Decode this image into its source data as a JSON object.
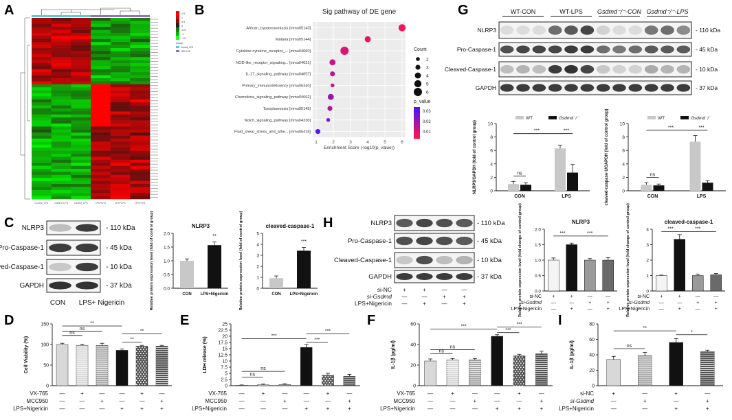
{
  "panel_letters": {
    "A": "A",
    "B": "B",
    "C": "C",
    "D": "D",
    "E": "E",
    "F": "F",
    "G": "G",
    "H": "H",
    "I": "I"
  },
  "panelB": {
    "title": "Sig pathway of DE gene",
    "xlabel": "Enrichment Score (-log10(p_value))",
    "legend_count_title": "Count",
    "legend_p_title": "p_value"
  },
  "panelG": {
    "groups": [
      "WT-CON",
      "WT-LPS",
      "Gsdmd⁻/⁻-CON",
      "Gsdmd⁻/⁻-LPS"
    ],
    "rows": [
      "NLRP3",
      "Pro-Caspase-1",
      "Cleaved-Caspase-1",
      "GAPDH"
    ],
    "sizes": [
      "110 kDa",
      "45 kDa",
      "10 kDa",
      "37 kDa"
    ]
  },
  "panelC": {
    "rows": [
      "NLRP3",
      "Pro-Caspase-1",
      "Cleaved-Caspase-1",
      "GAPDH"
    ],
    "sizes": [
      "110 kDa",
      "45 kDa",
      "10 kDa",
      "37 kDa"
    ],
    "lanes": [
      "CON",
      "LPS+ Nigericin"
    ]
  },
  "panelH": {
    "rows": [
      "NLRP3",
      "Pro-Caspase-1",
      "Cleaved-Caspase-1",
      "GAPDH"
    ],
    "sizes": [
      "110 kDa",
      "45 kDa",
      "10 kDa",
      "37 kDa"
    ],
    "cond_labels": [
      "si-NC",
      "si-Gsdmd",
      "LPS+Nigericin"
    ]
  },
  "chart_data": [
    {
      "id": "A",
      "type": "heatmap",
      "columns": 6,
      "legend_values": [
        "1.5",
        "1",
        "0.5",
        "0",
        "-0.5",
        "-1",
        "-1.5"
      ],
      "group_legend_title": "Group",
      "group_legend": [
        "Control_LPS",
        "LPS+LPS"
      ]
    },
    {
      "id": "B",
      "type": "scatter",
      "title": "Sig pathway of DE gene",
      "xlabel": "Enrichment Score (-log10(p_value))",
      "xlim": [
        0.8,
        6.2
      ],
      "xticks": [
        "1",
        "2",
        "3",
        "4",
        "5",
        "6"
      ],
      "pathways": [
        "African_trypanosomiasis [mmu05143]",
        "Malaria [mmu05144]",
        "Cytokine-cytokine_receptor_... [mmu04060]",
        "NOD-like_receptor_signaling... [mmu04621]",
        "IL-17_signaling_pathway [mmu04657]",
        "Primary_immunodeficiency [mmu05340]",
        "Chemokine_signaling_pathway [mmu04062]",
        "Toxoplasmosis [mmu05145]",
        "Notch_signaling_pathway [mmu04330]",
        "Fluid_shear_stress_and_athe... [mmu05418]"
      ],
      "x": [
        6.0,
        4.0,
        2.65,
        1.95,
        1.95,
        1.95,
        1.85,
        1.8,
        1.7,
        1.1
      ],
      "count": [
        5,
        4,
        6,
        4,
        3,
        2,
        4,
        3,
        2,
        3
      ],
      "p_value": [
        0.003,
        0.005,
        0.008,
        0.012,
        0.014,
        0.012,
        0.022,
        0.018,
        0.028,
        0.038
      ],
      "count_legend": [
        "2",
        "3",
        "4",
        "5",
        "6"
      ],
      "p_legend": [
        "0.03",
        "0.02",
        "0.01"
      ]
    },
    {
      "id": "C_NLRP3",
      "type": "bar",
      "title": "NLRP3",
      "ylabel": "Relative protein expression level (fold of control group)",
      "categories": [
        "CON",
        "LPS+Nigericin"
      ],
      "values": [
        1.0,
        1.57
      ],
      "errors": [
        0.07,
        0.12
      ],
      "ylim": [
        0,
        2.0
      ],
      "yticks": [
        "0.0",
        "0.5",
        "1.0",
        "1.5",
        "2.0"
      ],
      "significance": [
        "**"
      ]
    },
    {
      "id": "C_cc1",
      "type": "bar",
      "title": "cleaved-caspase-1",
      "ylabel": "Relative protein expression level (fold of control group)",
      "categories": [
        "CON",
        "LPS+Nigericin"
      ],
      "values": [
        0.92,
        3.42
      ],
      "errors": [
        0.2,
        0.3
      ],
      "ylim": [
        0,
        5
      ],
      "yticks": [
        "0",
        "1",
        "2",
        "3",
        "4",
        "5"
      ],
      "significance": [
        "***"
      ]
    },
    {
      "id": "G_NLRP3",
      "type": "bar",
      "ylabel": "NLRP3/GAPDH (fold of control group)",
      "categories": [
        "CON",
        "LPS"
      ],
      "series": [
        {
          "name": "WT",
          "values": [
            1.0,
            6.3
          ],
          "errors": [
            0.4,
            0.5
          ]
        },
        {
          "name": "Gsdmd⁻/⁻",
          "values": [
            0.9,
            2.7
          ],
          "errors": [
            0.3,
            1.2
          ]
        }
      ],
      "ylim": [
        0,
        10
      ],
      "yticks": [
        "0",
        "2",
        "4",
        "6",
        "8",
        "10"
      ],
      "significance": [
        "ns",
        "***",
        "***"
      ]
    },
    {
      "id": "G_cc1",
      "type": "bar",
      "ylabel": "cleaved-caspase-1/GAPDH (fold of control group)",
      "categories": [
        "CON",
        "LPS"
      ],
      "series": [
        {
          "name": "WT",
          "values": [
            0.9,
            7.3
          ],
          "errors": [
            0.3,
            0.9
          ]
        },
        {
          "name": "Gsdmd⁻/⁻",
          "values": [
            0.8,
            1.2
          ],
          "errors": [
            0.2,
            0.3
          ]
        }
      ],
      "ylim": [
        0,
        10
      ],
      "yticks": [
        "0",
        "2",
        "4",
        "6",
        "8",
        "10"
      ],
      "significance": [
        "ns",
        "***",
        "***"
      ]
    },
    {
      "id": "H_NLRP3",
      "type": "bar",
      "title": "NLRP3",
      "ylabel": "Relative protein expression level (fold change of control group)",
      "values": [
        1.0,
        1.5,
        1.0,
        1.0
      ],
      "errors": [
        0.07,
        0.05,
        0.05,
        0.08
      ],
      "ylim": [
        0,
        2.0
      ],
      "yticks": [
        "0.0",
        "0.5",
        "1.0",
        "1.5",
        "2.0"
      ],
      "conditions": {
        "si-NC": [
          "+",
          "+",
          "—",
          "—"
        ],
        "si-Gsdmd": [
          "—",
          "—",
          "+",
          "+"
        ],
        "LPS+Nigericin": [
          "—",
          "+",
          "—",
          "+"
        ]
      },
      "significance": [
        "***",
        "***"
      ]
    },
    {
      "id": "H_cc1",
      "type": "bar",
      "title": "cleaved-caspase-1",
      "ylabel": "Relative protein expression level (fold change of control group)",
      "values": [
        1.0,
        3.35,
        1.0,
        1.05
      ],
      "errors": [
        0.03,
        0.3,
        0.1,
        0.08
      ],
      "ylim": [
        0,
        4
      ],
      "yticks": [
        "0",
        "1",
        "2",
        "3",
        "4"
      ],
      "conditions": {
        "si-NC": [
          "+",
          "+",
          "—",
          "—"
        ],
        "si-Gsdmd": [
          "—",
          "—",
          "+",
          "+"
        ],
        "LPS+Nigericin": [
          "—",
          "+",
          "—",
          "+"
        ]
      },
      "significance": [
        "***",
        "***"
      ]
    },
    {
      "id": "D",
      "type": "bar",
      "ylabel": "Cell Viability (%)",
      "values": [
        100,
        98,
        98,
        86,
        96,
        96
      ],
      "errors": [
        3,
        3,
        5,
        3,
        2,
        2
      ],
      "ylim": [
        0,
        150
      ],
      "yticks": [
        "0",
        "50",
        "100",
        "150"
      ],
      "condition_labels": [
        "VX-765",
        "MCC950",
        "LPS+Nigericin"
      ],
      "conditions": {
        "VX-765": [
          "—",
          "+",
          "—",
          "—",
          "+",
          "—"
        ],
        "MCC950": [
          "—",
          "—",
          "+",
          "—",
          "—",
          "+"
        ],
        "LPS+Nigericin": [
          "—",
          "—",
          "—",
          "+",
          "+",
          "+"
        ]
      },
      "significance": [
        "ns",
        "ns",
        "**",
        "**",
        "**"
      ]
    },
    {
      "id": "E",
      "type": "bar",
      "ylabel": "LDH release (%)",
      "values": [
        0.2,
        0.4,
        0.5,
        15.5,
        4.2,
        3.8
      ],
      "errors": [
        0.1,
        0.3,
        0.3,
        1.2,
        0.8,
        0.8
      ],
      "ylim": [
        0,
        25
      ],
      "yticks": [
        "0",
        "2.5",
        "5",
        "7.5",
        "10",
        "12.5",
        "15",
        "17.5",
        "20",
        "22.5",
        "25"
      ],
      "condition_labels": [
        "VX-765",
        "MCC950",
        "LPS+Nigericin"
      ],
      "conditions": {
        "VX-765": [
          "—",
          "+",
          "—",
          "—",
          "+",
          "—"
        ],
        "MCC950": [
          "—",
          "—",
          "+",
          "—",
          "—",
          "+"
        ],
        "LPS+Nigericin": [
          "—",
          "—",
          "—",
          "+",
          "+",
          "+"
        ]
      },
      "significance": [
        "ns",
        "ns",
        "***",
        "***",
        "***"
      ]
    },
    {
      "id": "F",
      "type": "bar",
      "ylabel": "IL-1β (pg/ml)",
      "values": [
        24,
        25,
        25,
        48,
        29,
        31
      ],
      "errors": [
        2,
        1.5,
        1.5,
        1.5,
        1.5,
        2.5
      ],
      "ylim": [
        0,
        60
      ],
      "yticks": [
        "0",
        "20",
        "40",
        "60"
      ],
      "condition_labels": [
        "VX-765",
        "MCC950",
        "LPS+Nigericin"
      ],
      "conditions": {
        "VX-765": [
          "—",
          "+",
          "—",
          "—",
          "+",
          "—"
        ],
        "MCC950": [
          "—",
          "—",
          "+",
          "—",
          "—",
          "+"
        ],
        "LPS+Nigericin": [
          "—",
          "—",
          "—",
          "+",
          "+",
          "+"
        ]
      },
      "significance": [
        "ns",
        "ns",
        "***",
        "***",
        "***"
      ]
    },
    {
      "id": "I",
      "type": "bar",
      "ylabel": "IL-1β (pg/ml)",
      "values": [
        34,
        39,
        56,
        44
      ],
      "errors": [
        4,
        4,
        5,
        2
      ],
      "ylim": [
        0,
        80
      ],
      "yticks": [
        "0",
        "20",
        "40",
        "60",
        "80"
      ],
      "condition_labels": [
        "si-NC",
        "si-Gsdmd",
        "LPS+Nigericin"
      ],
      "conditions": {
        "si-NC": [
          "+",
          "—",
          "+",
          "—"
        ],
        "si-Gsdmd": [
          "—",
          "+",
          "—",
          "+"
        ],
        "LPS+Nigericin": [
          "—",
          "—",
          "+",
          "+"
        ]
      },
      "significance": [
        "ns",
        "**",
        "*"
      ]
    }
  ]
}
